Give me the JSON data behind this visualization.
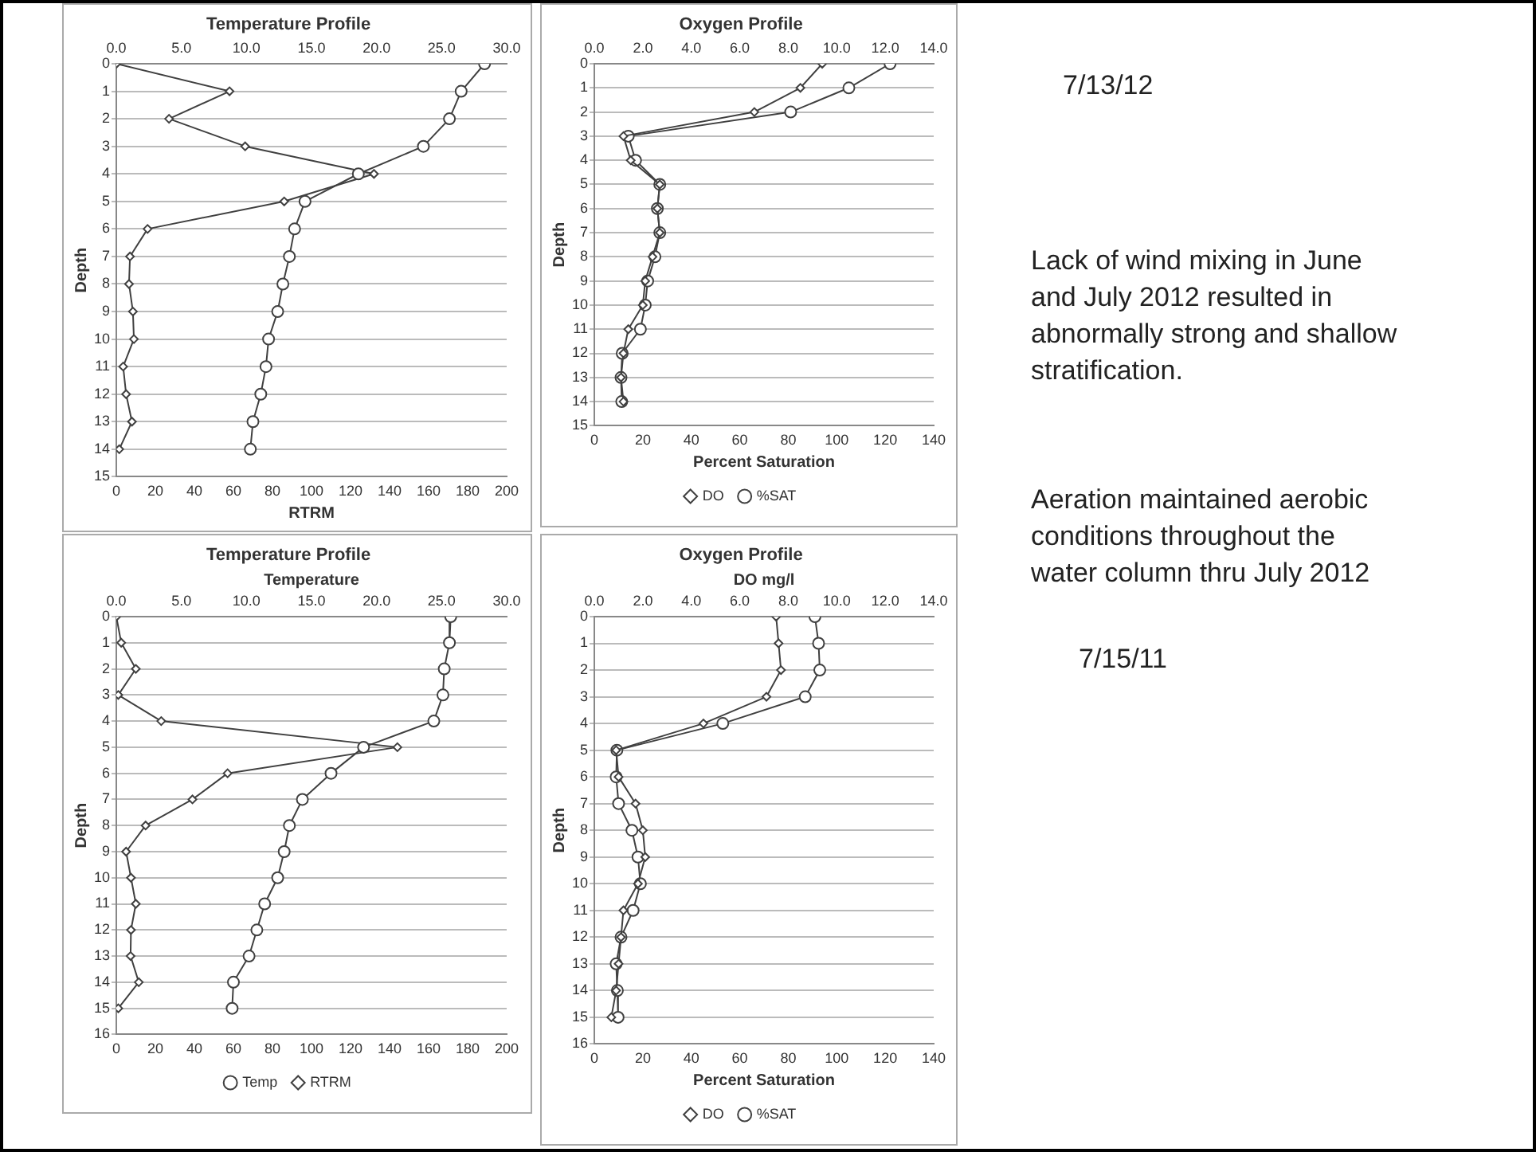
{
  "chart_data": [
    {
      "type": "line",
      "title": "Temperature Profile",
      "xlabel": "RTRM",
      "ylabel": "Depth",
      "xlim": [
        0,
        200
      ],
      "xticks": [
        0,
        20,
        40,
        60,
        80,
        100,
        120,
        140,
        160,
        180,
        200
      ],
      "x2lim": [
        0,
        30
      ],
      "x2ticks": [
        {
          "value": 0,
          "label": "0.0"
        },
        {
          "value": 5,
          "label": "5.0"
        },
        {
          "value": 10,
          "label": "10.0"
        },
        {
          "value": 15,
          "label": "15.0"
        },
        {
          "value": 20,
          "label": "20.0"
        },
        {
          "value": 25,
          "label": "25.0"
        },
        {
          "value": 30,
          "label": "30.0"
        }
      ],
      "ylim": [
        15,
        0
      ],
      "yticks": [
        0,
        1,
        2,
        3,
        4,
        5,
        6,
        7,
        8,
        9,
        10,
        11,
        12,
        13,
        14,
        15
      ],
      "grid": "y",
      "legend": false,
      "series": [
        {
          "color": "#404040",
          "marker": "circle",
          "axis": "x2",
          "x": [
            28.3,
            26.5,
            25.6,
            23.6,
            18.6,
            14.5,
            13.7,
            13.3,
            12.8,
            12.4,
            11.7,
            11.5,
            11.1,
            10.5,
            10.3
          ],
          "values": [
            0,
            1,
            2,
            3,
            4,
            5,
            6,
            7,
            8,
            9,
            10,
            11,
            12,
            13,
            14
          ]
        },
        {
          "color": "#404040",
          "marker": "diamond",
          "x": [
            0,
            58,
            27,
            66,
            132,
            86,
            16,
            7,
            6.5,
            8.5,
            9,
            3.5,
            5,
            8,
            1.5
          ],
          "values": [
            0,
            1,
            2,
            3,
            4,
            5,
            6,
            7,
            8,
            9,
            10,
            11,
            12,
            13,
            14
          ]
        }
      ]
    },
    {
      "type": "line",
      "title": "Oxygen Profile",
      "xlabel": "Percent Saturation",
      "ylabel": "Depth",
      "xlim": [
        0,
        140
      ],
      "xticks": [
        0,
        20,
        40,
        60,
        80,
        100,
        120,
        140
      ],
      "x2lim": [
        0,
        14
      ],
      "x2ticks": [
        {
          "value": 0,
          "label": "0.0"
        },
        {
          "value": 2,
          "label": "2.0"
        },
        {
          "value": 4,
          "label": "4.0"
        },
        {
          "value": 6,
          "label": "6.0"
        },
        {
          "value": 8,
          "label": "8.0"
        },
        {
          "value": 10,
          "label": "10.0"
        },
        {
          "value": 12,
          "label": "12.0"
        },
        {
          "value": 14,
          "label": "14.0"
        }
      ],
      "ylim": [
        15,
        0
      ],
      "yticks": [
        0,
        1,
        2,
        3,
        4,
        5,
        6,
        7,
        8,
        9,
        10,
        11,
        12,
        13,
        14,
        15
      ],
      "grid": "y",
      "legend": "bottom",
      "series": [
        {
          "name": "DO",
          "color": "#404040",
          "marker": "diamond",
          "axis": "x2",
          "x": [
            9.4,
            8.5,
            6.6,
            1.2,
            1.5,
            2.7,
            2.6,
            2.7,
            2.4,
            2.1,
            2.0,
            1.4,
            1.2,
            1.1,
            1.2
          ],
          "values": [
            0,
            1,
            2,
            3,
            4,
            5,
            6,
            7,
            8,
            9,
            10,
            11,
            12,
            13,
            14
          ]
        },
        {
          "name": "%SAT",
          "color": "#404040",
          "marker": "circle",
          "x": [
            122,
            105,
            81,
            14,
            17,
            27,
            26,
            27,
            25,
            22,
            21,
            19,
            11.5,
            11,
            11.3
          ],
          "values": [
            0,
            1,
            2,
            3,
            4,
            5,
            6,
            7,
            8,
            9,
            10,
            11,
            12,
            13,
            14
          ]
        }
      ]
    },
    {
      "type": "line",
      "title": "Temperature Profile",
      "x2label": "Temperature",
      "ylabel": "Depth",
      "xlim": [
        0,
        200
      ],
      "xticks": [
        0,
        20,
        40,
        60,
        80,
        100,
        120,
        140,
        160,
        180,
        200
      ],
      "x2lim": [
        0,
        30
      ],
      "x2ticks": [
        {
          "value": 0,
          "label": "0.0"
        },
        {
          "value": 5,
          "label": "5.0"
        },
        {
          "value": 10,
          "label": "10.0"
        },
        {
          "value": 15,
          "label": "15.0"
        },
        {
          "value": 20,
          "label": "20.0"
        },
        {
          "value": 25,
          "label": "25.0"
        },
        {
          "value": 30,
          "label": "30.0"
        }
      ],
      "ylim": [
        16,
        0
      ],
      "yticks": [
        0,
        1,
        2,
        3,
        4,
        5,
        6,
        7,
        8,
        9,
        10,
        11,
        12,
        13,
        14,
        15,
        16
      ],
      "grid": "y",
      "legend": "bottom",
      "series": [
        {
          "name": "Temp",
          "color": "#404040",
          "marker": "circle",
          "axis": "x2",
          "x": [
            25.7,
            25.6,
            25.2,
            25.1,
            24.4,
            19.0,
            16.5,
            14.3,
            13.3,
            12.9,
            12.4,
            11.4,
            10.8,
            10.2,
            9.0,
            8.9
          ],
          "values": [
            0,
            1,
            2,
            3,
            4,
            5,
            6,
            7,
            8,
            9,
            10,
            11,
            12,
            13,
            14,
            15
          ]
        },
        {
          "name": "RTRM",
          "color": "#404040",
          "marker": "diamond",
          "x": [
            0,
            2.5,
            10,
            1,
            23,
            144,
            57,
            39,
            15,
            5,
            7.5,
            10,
            7.5,
            7.3,
            11.5,
            1
          ],
          "values": [
            0,
            1,
            2,
            3,
            4,
            5,
            6,
            7,
            8,
            9,
            10,
            11,
            12,
            13,
            14,
            15
          ]
        }
      ]
    },
    {
      "type": "line",
      "title": "Oxygen Profile",
      "x2label": "DO mg/l",
      "xlabel": "Percent Saturation",
      "ylabel": "Depth",
      "xlim": [
        0,
        140
      ],
      "xticks": [
        0,
        20,
        40,
        60,
        80,
        100,
        120,
        140
      ],
      "x2lim": [
        0,
        14
      ],
      "x2ticks": [
        {
          "value": 0,
          "label": "0.0"
        },
        {
          "value": 2,
          "label": "2.0"
        },
        {
          "value": 4,
          "label": "4.0"
        },
        {
          "value": 6,
          "label": "6.0"
        },
        {
          "value": 8,
          "label": "8.0"
        },
        {
          "value": 10,
          "label": "10.0"
        },
        {
          "value": 12,
          "label": "12.0"
        },
        {
          "value": 14,
          "label": "14.0"
        }
      ],
      "ylim": [
        16,
        0
      ],
      "yticks": [
        0,
        1,
        2,
        3,
        4,
        5,
        6,
        7,
        8,
        9,
        10,
        11,
        12,
        13,
        14,
        15,
        16
      ],
      "grid": "y",
      "legend": "bottom",
      "series": [
        {
          "name": "DO",
          "color": "#404040",
          "marker": "diamond",
          "axis": "x2",
          "x": [
            7.5,
            7.6,
            7.7,
            7.1,
            4.5,
            0.9,
            1.0,
            1.7,
            2.0,
            2.1,
            1.8,
            1.2,
            1.1,
            1.0,
            0.9,
            0.7
          ],
          "values": [
            0,
            1,
            2,
            3,
            4,
            5,
            6,
            7,
            8,
            9,
            10,
            11,
            12,
            13,
            14,
            15
          ]
        },
        {
          "name": "%SAT",
          "color": "#404040",
          "marker": "circle",
          "x": [
            91,
            92.5,
            93,
            87,
            53,
            9.3,
            9,
            10,
            15.5,
            18,
            19,
            16,
            11,
            9,
            9.5,
            9.8
          ],
          "values": [
            0,
            1,
            2,
            3,
            4,
            5,
            6,
            7,
            8,
            9,
            10,
            11,
            12,
            13,
            14,
            15
          ]
        }
      ]
    },
    {
      "type": "other",
      "annotations": [
        "7/13/12",
        "Lack of wind mixing in June and July 2012 resulted in abnormally strong and shallow stratification.",
        "Aeration maintained aerobic conditions throughout the water column thru July 2012",
        "7/15/11"
      ]
    }
  ]
}
